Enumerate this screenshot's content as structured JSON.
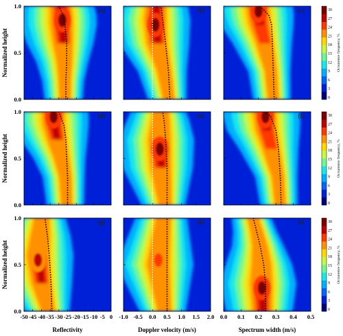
{
  "figure": {
    "x_axis_labels": [
      "Reflectivity",
      "Doppler velocity (m/s)",
      "Spectrum width (m/s)"
    ],
    "y_axis_label": "Normalized height",
    "colorbar_label": "Occurrence frequency, %",
    "colorbar_ticks": [
      "0",
      "3",
      "6",
      "9",
      "12",
      "15",
      "18",
      "21",
      "24",
      "27",
      "30"
    ],
    "colorbar_colors": [
      "#00007f",
      "#0020d8",
      "#0068f8",
      "#00b0ff",
      "#18e8e8",
      "#70f890",
      "#c8f840",
      "#ffd800",
      "#ff9000",
      "#ff3800",
      "#c00000",
      "#7a0000"
    ],
    "panel_labels": [
      "(a)",
      "(b)",
      "(c)",
      "(d)",
      "(e)",
      "(f)",
      "(g)",
      "(h)",
      "(i)"
    ]
  },
  "chart_data": [
    {
      "type": "heatmap",
      "panel": "(a)",
      "xlabel": "Reflectivity",
      "ylabel": "Normalized height",
      "xlim": [
        -50,
        0
      ],
      "ylim": [
        0,
        1
      ],
      "x_ticks": [
        "-50",
        "-45",
        "-40",
        "-35",
        "-30",
        "-25",
        "-20",
        "-15",
        "-10",
        "-5",
        "0"
      ],
      "y_ticks": [
        "0.0",
        "0.5",
        "1.0"
      ],
      "mode_line": [
        [
          -26,
          0.0
        ],
        [
          -26,
          0.2
        ],
        [
          -25.5,
          0.4
        ],
        [
          -25.5,
          0.6
        ],
        [
          -26.5,
          0.8
        ],
        [
          -27.5,
          0.9
        ],
        [
          -30,
          1.0
        ]
      ],
      "peak": {
        "x": -28,
        "y": 0.85,
        "value": 30
      }
    },
    {
      "type": "heatmap",
      "panel": "(b)",
      "xlabel": "Doppler velocity (m/s)",
      "ylabel": "Normalized height",
      "xlim": [
        -1.0,
        2.0
      ],
      "ylim": [
        0,
        1
      ],
      "x_ticks": [
        "-1.0",
        "-0.5",
        "0.0",
        "0.5",
        "1.0",
        "1.5",
        "2.0"
      ],
      "y_ticks": [
        "0.0",
        "0.5",
        "1.0"
      ],
      "mode_line": [
        [
          0.6,
          0.0
        ],
        [
          0.55,
          0.3
        ],
        [
          0.45,
          0.6
        ],
        [
          0.35,
          0.85
        ],
        [
          0.3,
          1.0
        ]
      ],
      "mode_line_2": [
        [
          0.0,
          0.0
        ],
        [
          0.0,
          1.0
        ]
      ],
      "peak": {
        "x": 0.1,
        "y": 0.8,
        "value": 30
      }
    },
    {
      "type": "heatmap",
      "panel": "(c)",
      "xlabel": "Spectrum width (m/s)",
      "ylabel": "Normalized height",
      "xlim": [
        0,
        0.5
      ],
      "ylim": [
        0,
        1
      ],
      "x_ticks": [
        "0.0",
        "0.1",
        "0.2",
        "0.3",
        "0.4",
        "0.5"
      ],
      "y_ticks": [
        "0.0",
        "0.5",
        "1.0"
      ],
      "mode_line": [
        [
          0.29,
          0.0
        ],
        [
          0.285,
          0.3
        ],
        [
          0.28,
          0.6
        ],
        [
          0.275,
          0.8
        ],
        [
          0.26,
          0.9
        ],
        [
          0.21,
          1.0
        ]
      ],
      "peak": {
        "x": 0.2,
        "y": 0.95,
        "value": 30
      }
    },
    {
      "type": "heatmap",
      "panel": "(d)",
      "xlabel": "Reflectivity",
      "ylabel": "Normalized height",
      "xlim": [
        -50,
        0
      ],
      "ylim": [
        0,
        1
      ],
      "x_ticks": [
        "-50",
        "-45",
        "-40",
        "-35",
        "-30",
        "-25",
        "-20",
        "-15",
        "-10",
        "-5",
        "0"
      ],
      "y_ticks": [
        "0.0",
        "0.5",
        "1.0"
      ],
      "mode_line": [
        [
          -25,
          0.0
        ],
        [
          -25,
          0.3
        ],
        [
          -25.5,
          0.5
        ],
        [
          -26,
          0.7
        ],
        [
          -27,
          0.85
        ],
        [
          -28,
          0.9
        ],
        [
          -30,
          1.0
        ]
      ],
      "peak": {
        "x": -33,
        "y": 0.95,
        "value": 30
      }
    },
    {
      "type": "heatmap",
      "panel": "(e)",
      "xlabel": "Doppler velocity (m/s)",
      "ylabel": "Normalized height",
      "xlim": [
        -1.0,
        2.0
      ],
      "ylim": [
        0,
        1
      ],
      "x_ticks": [
        "-1.0",
        "-0.5",
        "0.0",
        "0.5",
        "1.0",
        "1.5",
        "2.0"
      ],
      "y_ticks": [
        "0.0",
        "0.5",
        "1.0"
      ],
      "mode_line": [
        [
          0.5,
          0.0
        ],
        [
          0.5,
          0.4
        ],
        [
          0.45,
          0.7
        ],
        [
          0.4,
          0.9
        ],
        [
          0.35,
          1.0
        ]
      ],
      "mode_line_2": [
        [
          0.0,
          0.0
        ],
        [
          0.0,
          1.0
        ]
      ],
      "peak": {
        "x": 0.25,
        "y": 0.6,
        "value": 30
      }
    },
    {
      "type": "heatmap",
      "panel": "(f)",
      "xlabel": "Spectrum width (m/s)",
      "ylabel": "Normalized height",
      "xlim": [
        0,
        0.5
      ],
      "ylim": [
        0,
        1
      ],
      "x_ticks": [
        "0.0",
        "0.1",
        "0.2",
        "0.3",
        "0.4",
        "0.5"
      ],
      "y_ticks": [
        "0.0",
        "0.5",
        "1.0"
      ],
      "mode_line": [
        [
          0.33,
          0.0
        ],
        [
          0.325,
          0.3
        ],
        [
          0.315,
          0.6
        ],
        [
          0.3,
          0.8
        ],
        [
          0.27,
          0.95
        ],
        [
          0.24,
          1.0
        ]
      ],
      "peak": {
        "x": 0.24,
        "y": 0.95,
        "value": 30
      }
    },
    {
      "type": "heatmap",
      "panel": "(g)",
      "xlabel": "Reflectivity",
      "ylabel": "Normalized height",
      "xlim": [
        -50,
        0
      ],
      "ylim": [
        0,
        1
      ],
      "x_ticks": [
        "-50",
        "-45",
        "-40",
        "-35",
        "-30",
        "-25",
        "-20",
        "-15",
        "-10",
        "-5",
        "0"
      ],
      "y_ticks": [
        "0.0",
        "0.5",
        "1.0"
      ],
      "mode_line": [
        [
          -34,
          0.0
        ],
        [
          -34.5,
          0.3
        ],
        [
          -35.5,
          0.6
        ],
        [
          -36.5,
          0.8
        ],
        [
          -38,
          1.0
        ]
      ],
      "peak": {
        "x": -42,
        "y": 0.55,
        "value": 27
      }
    },
    {
      "type": "heatmap",
      "panel": "(h)",
      "xlabel": "Doppler velocity (m/s)",
      "ylabel": "Normalized height",
      "xlim": [
        -1.0,
        2.0
      ],
      "ylim": [
        0,
        1
      ],
      "x_ticks": [
        "-1.0",
        "-0.5",
        "0.0",
        "0.5",
        "1.0",
        "1.5",
        "2.0"
      ],
      "y_ticks": [
        "0.0",
        "0.5",
        "1.0"
      ],
      "mode_line": [
        [
          0.5,
          0.0
        ],
        [
          0.5,
          0.5
        ],
        [
          0.5,
          1.0
        ]
      ],
      "mode_line_2": [
        [
          0.0,
          0.0
        ],
        [
          0.0,
          1.0
        ]
      ],
      "peak": {
        "x": 0.2,
        "y": 0.55,
        "value": 24
      }
    },
    {
      "type": "heatmap",
      "panel": "(i)",
      "xlabel": "Spectrum width (m/s)",
      "ylabel": "Normalized height",
      "xlim": [
        0,
        0.5
      ],
      "ylim": [
        0,
        1
      ],
      "x_ticks": [
        "0.0",
        "0.1",
        "0.2",
        "0.3",
        "0.4",
        "0.5"
      ],
      "y_ticks": [
        "0.0",
        "0.5",
        "1.0"
      ],
      "mode_line": [
        [
          0.24,
          0.0
        ],
        [
          0.24,
          0.3
        ],
        [
          0.23,
          0.5
        ],
        [
          0.21,
          0.7
        ],
        [
          0.19,
          0.85
        ],
        [
          0.17,
          1.0
        ]
      ],
      "peak": {
        "x": 0.22,
        "y": 0.25,
        "value": 30
      }
    }
  ]
}
